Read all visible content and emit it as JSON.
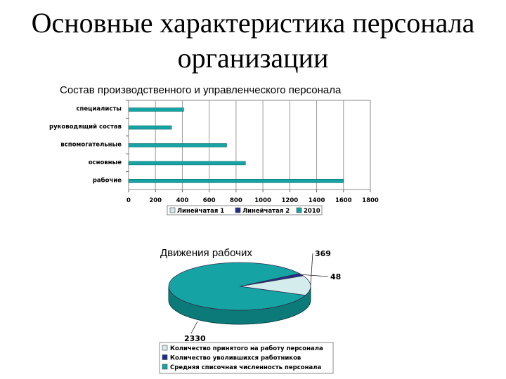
{
  "slide": {
    "title_line1": "Основные характеристика персонала",
    "title_line2": "организации"
  },
  "chart_data": [
    {
      "type": "bar",
      "orientation": "horizontal",
      "title": "Состав производственного и управленческого персонала",
      "categories": [
        "специалисты",
        "руководящий состав",
        "вспомогательные",
        "основные",
        "рабочие"
      ],
      "series": [
        {
          "name": "Линейчатая 1",
          "values": [
            null,
            null,
            null,
            null,
            null
          ],
          "color": "#d5ecec"
        },
        {
          "name": "Линейчатая 2",
          "values": [
            null,
            null,
            null,
            null,
            null
          ],
          "color": "#1f2f87"
        },
        {
          "name": "2010",
          "values": [
            410,
            320,
            730,
            870,
            1600
          ],
          "color": "#16a3a3"
        }
      ],
      "xlim": [
        0,
        1800
      ],
      "xticks": [
        0,
        200,
        400,
        600,
        800,
        1000,
        1200,
        1400,
        1600,
        1800
      ],
      "grid": true,
      "legend": "bottom"
    },
    {
      "type": "pie",
      "title": "Движения рабочих",
      "slices": [
        {
          "label": "Количество принятого на работу персонала",
          "value": 369,
          "color": "#d5ecec"
        },
        {
          "label": "Количество уволившихся работников",
          "value": 48,
          "color": "#1f2f87"
        },
        {
          "label": "Средняя списочная численность персонала",
          "value": 2330,
          "color": "#16a3a3"
        }
      ],
      "legend": "bottom"
    }
  ]
}
